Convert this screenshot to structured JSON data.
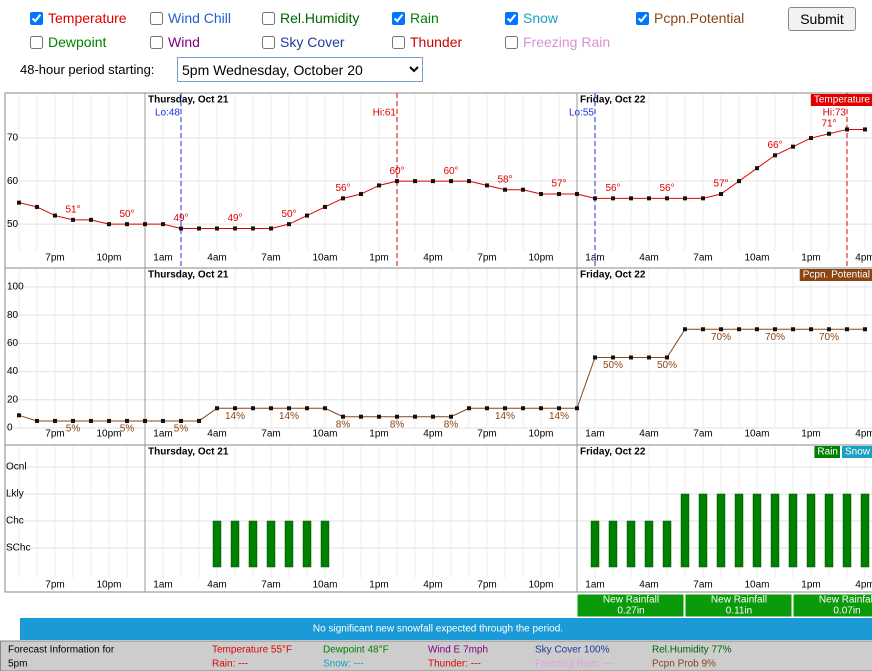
{
  "form": {
    "checkboxes": [
      {
        "label": "Temperature",
        "checked": true,
        "color": "#e00000"
      },
      {
        "label": "Wind Chill",
        "checked": false,
        "color": "#2060d0"
      },
      {
        "label": "Rel.Humidity",
        "checked": false,
        "color": "#006400"
      },
      {
        "label": "Rain",
        "checked": true,
        "color": "#008000"
      },
      {
        "label": "Snow",
        "checked": true,
        "color": "#1aa0c0"
      },
      {
        "label": "Pcpn.Potential",
        "checked": true,
        "color": "#8b4513"
      },
      {
        "label": "Dewpoint",
        "checked": false,
        "color": "#008000"
      },
      {
        "label": "Wind",
        "checked": false,
        "color": "#800080"
      },
      {
        "label": "Sky Cover",
        "checked": false,
        "color": "#1e3ca0"
      },
      {
        "label": "Thunder",
        "checked": false,
        "color": "#cc0000"
      },
      {
        "label": "Freezing Rain",
        "checked": false,
        "color": "#d890d8"
      }
    ],
    "submit": "Submit",
    "period_label": "48-hour period starting:",
    "period_value": "5pm Wednesday, October 20"
  },
  "chart_data": [
    {
      "type": "line",
      "categories": [
        null,
        null,
        "7pm",
        null,
        null,
        "10pm",
        null,
        null,
        "1am",
        null,
        null,
        "4am",
        null,
        null,
        "7am",
        null,
        null,
        "10am",
        null,
        null,
        "1pm",
        null,
        null,
        "4pm",
        null,
        null,
        "7pm",
        null,
        null,
        "10pm",
        null,
        null,
        "1am",
        null,
        null,
        "4am",
        null,
        null,
        "7am",
        null,
        null,
        "10am",
        null,
        null,
        "1pm",
        null,
        null,
        "4pm"
      ],
      "days": [
        {
          "label": "Thursday, Oct 21",
          "index": 7
        },
        {
          "label": "Friday, Oct 22",
          "index": 31
        }
      ],
      "ylim": [
        44,
        80
      ],
      "yticks": [
        50,
        60,
        70
      ],
      "grid": true,
      "series": [
        {
          "name": "Temperature",
          "color": "#e00000",
          "values": [
            55,
            54,
            52,
            51,
            51,
            50,
            50,
            50,
            50,
            49,
            49,
            49,
            49,
            49,
            49,
            50,
            52,
            54,
            56,
            57,
            59,
            60,
            60,
            60,
            60,
            60,
            59,
            58,
            58,
            57,
            57,
            57,
            56,
            56,
            56,
            56,
            56,
            56,
            56,
            57,
            60,
            63,
            66,
            68,
            70,
            71,
            72,
            72
          ],
          "value_labels": [
            null,
            null,
            null,
            "51°",
            null,
            null,
            "50°",
            null,
            null,
            "49°",
            null,
            null,
            "49°",
            null,
            null,
            "50°",
            null,
            null,
            "56°",
            null,
            null,
            "60°",
            null,
            null,
            "60°",
            null,
            null,
            "58°",
            null,
            null,
            "57°",
            null,
            null,
            "56°",
            null,
            null,
            "56°",
            null,
            null,
            "57°",
            null,
            null,
            "66°",
            null,
            null,
            "71°",
            null,
            null
          ]
        }
      ],
      "annotations": [
        {
          "label": "Lo:48",
          "index": 9,
          "color": "#2030e0"
        },
        {
          "label": "Hi:61",
          "index": 21,
          "color": "#e00000"
        },
        {
          "label": "Lo:55",
          "index": 32,
          "color": "#2030e0"
        },
        {
          "label": "Hi:73",
          "index": 46,
          "color": "#e00000"
        }
      ]
    },
    {
      "type": "line",
      "categories": [
        null,
        null,
        "7pm",
        null,
        null,
        "10pm",
        null,
        null,
        "1am",
        null,
        null,
        "4am",
        null,
        null,
        "7am",
        null,
        null,
        "10am",
        null,
        null,
        "1pm",
        null,
        null,
        "4pm",
        null,
        null,
        "7pm",
        null,
        null,
        "10pm",
        null,
        null,
        "1am",
        null,
        null,
        "4am",
        null,
        null,
        "7am",
        null,
        null,
        "10am",
        null,
        null,
        "1pm",
        null,
        null,
        "4pm"
      ],
      "days": [
        {
          "label": "Thursday, Oct 21",
          "index": 7
        },
        {
          "label": "Friday, Oct 22",
          "index": 31
        }
      ],
      "ylim": [
        0,
        112
      ],
      "yticks": [
        0,
        20,
        40,
        60,
        80,
        100
      ],
      "grid": true,
      "series": [
        {
          "name": "Pcpn. Potential",
          "color": "#8b4513",
          "values": [
            9,
            5,
            5,
            5,
            5,
            5,
            5,
            5,
            5,
            5,
            5,
            14,
            14,
            14,
            14,
            14,
            14,
            14,
            8,
            8,
            8,
            8,
            8,
            8,
            8,
            14,
            14,
            14,
            14,
            14,
            14,
            14,
            50,
            50,
            50,
            50,
            50,
            70,
            70,
            70,
            70,
            70,
            70,
            70,
            70,
            70,
            70,
            70
          ],
          "value_labels": [
            null,
            null,
            null,
            "5%",
            null,
            null,
            "5%",
            null,
            null,
            "5%",
            null,
            null,
            "14%",
            null,
            null,
            "14%",
            null,
            null,
            "8%",
            null,
            null,
            "8%",
            null,
            null,
            "8%",
            null,
            null,
            "14%",
            null,
            null,
            "14%",
            null,
            null,
            "50%",
            null,
            null,
            "50%",
            null,
            null,
            "70%",
            null,
            null,
            "70%",
            null,
            null,
            "70%",
            null,
            null
          ]
        }
      ]
    },
    {
      "type": "bar",
      "categories": [
        null,
        null,
        "7pm",
        null,
        null,
        "10pm",
        null,
        null,
        "1am",
        null,
        null,
        "4am",
        null,
        null,
        "7am",
        null,
        null,
        "10am",
        null,
        null,
        "1pm",
        null,
        null,
        "4pm",
        null,
        null,
        "7pm",
        null,
        null,
        "10pm",
        null,
        null,
        "1am",
        null,
        null,
        "4am",
        null,
        null,
        "7am",
        null,
        null,
        "10am",
        null,
        null,
        "1pm",
        null,
        null,
        "4pm"
      ],
      "days": [
        {
          "label": "Thursday, Oct 21",
          "index": 7
        },
        {
          "label": "Friday, Oct 22",
          "index": 31
        }
      ],
      "levels": [
        "SChc",
        "Chc",
        "Lkly",
        "Ocnl"
      ],
      "series": [
        {
          "name": "Rain",
          "color": "#008000",
          "values": [
            null,
            null,
            null,
            null,
            null,
            null,
            null,
            null,
            null,
            null,
            null,
            "Chc",
            "Chc",
            "Chc",
            "Chc",
            "Chc",
            "Chc",
            "Chc",
            null,
            null,
            null,
            null,
            null,
            null,
            null,
            null,
            null,
            null,
            null,
            null,
            null,
            null,
            "Chc",
            "Chc",
            "Chc",
            "Chc",
            "Chc",
            "Lkly",
            "Lkly",
            "Lkly",
            "Lkly",
            "Lkly",
            "Lkly",
            "Lkly",
            "Lkly",
            "Lkly",
            "Lkly",
            "Lkly"
          ]
        },
        {
          "name": "Snow",
          "color": "#1aa0c0",
          "values": [
            null,
            null,
            null,
            null,
            null,
            null,
            null,
            null,
            null,
            null,
            null,
            null,
            null,
            null,
            null,
            null,
            null,
            null,
            null,
            null,
            null,
            null,
            null,
            null,
            null,
            null,
            null,
            null,
            null,
            null,
            null,
            null,
            null,
            null,
            null,
            null,
            null,
            null,
            null,
            null,
            null,
            null,
            null,
            null,
            null,
            null,
            null,
            null
          ]
        }
      ]
    }
  ],
  "rainfall": [
    {
      "label": "New Rainfall",
      "amount": "0.27in"
    },
    {
      "label": "New Rainfall",
      "amount": "0.11in"
    },
    {
      "label": "New Rainfall",
      "amount": "0.07in"
    }
  ],
  "snow_note": "No significant new snowfall expected through the period.",
  "footer": {
    "title": [
      "Forecast Information for",
      "5pm"
    ],
    "columns": [
      [
        {
          "text": "Temperature 55°F",
          "color": "#e00000"
        },
        {
          "text": "Rain: ---",
          "color": "#e00000"
        }
      ],
      [
        {
          "text": "Dewpoint 48°F",
          "color": "#008000"
        },
        {
          "text": "Snow: ---",
          "color": "#1aa0c0"
        }
      ],
      [
        {
          "text": "Wind E 7mph",
          "color": "#800080"
        },
        {
          "text": "Thunder: ---",
          "color": "#e00000"
        }
      ],
      [
        {
          "text": "Sky Cover 100%",
          "color": "#1e3ca0"
        },
        {
          "text": "Freezing Rain: ---",
          "color": "#e0a0e0"
        }
      ],
      [
        {
          "text": "Rel.Humidity 77%",
          "color": "#006400"
        },
        {
          "text": "Pcpn Prob 9%",
          "color": "#8b4513"
        }
      ]
    ]
  }
}
